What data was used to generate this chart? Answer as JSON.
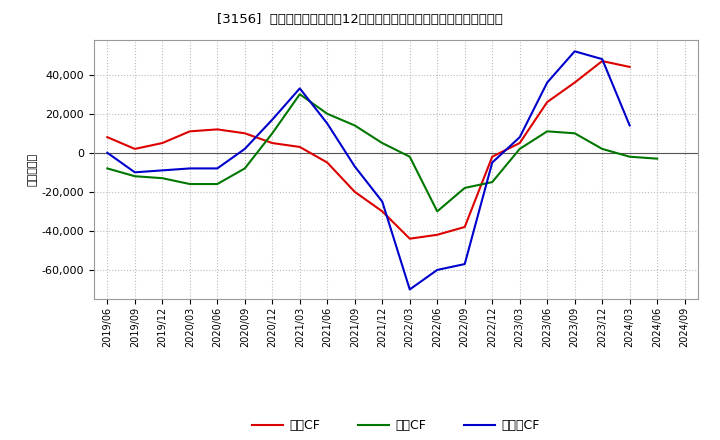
{
  "title": "[3156]  キャッシュフローの12か月移動合計の対前年同期増減額の推移",
  "ylabel": "（百万円）",
  "background_color": "#ffffff",
  "plot_background": "#ffffff",
  "grid_color": "#bbbbbb",
  "dates": [
    "2019/06",
    "2019/09",
    "2019/12",
    "2020/03",
    "2020/06",
    "2020/09",
    "2020/12",
    "2021/03",
    "2021/06",
    "2021/09",
    "2021/12",
    "2022/03",
    "2022/06",
    "2022/09",
    "2022/12",
    "2023/03",
    "2023/06",
    "2023/09",
    "2023/12",
    "2024/03",
    "2024/06",
    "2024/09"
  ],
  "eigyo_cf": [
    8000,
    2000,
    5000,
    11000,
    12000,
    10000,
    5000,
    3000,
    -5000,
    -20000,
    -30000,
    -44000,
    -42000,
    -38000,
    -2000,
    5000,
    26000,
    36000,
    47000,
    44000,
    null,
    null
  ],
  "toshi_cf": [
    -8000,
    -12000,
    -13000,
    -16000,
    -16000,
    -8000,
    10000,
    30000,
    20000,
    14000,
    5000,
    -2000,
    -30000,
    -18000,
    -15000,
    2000,
    11000,
    10000,
    2000,
    -2000,
    -3000,
    null
  ],
  "free_cf": [
    0,
    -10000,
    -9000,
    -8000,
    -8000,
    2000,
    17000,
    33000,
    15000,
    -7000,
    -25000,
    -70000,
    -60000,
    -57000,
    -5000,
    8000,
    36000,
    52000,
    48000,
    14000,
    null,
    null
  ],
  "eigyo_color": "#dd0000",
  "toshi_color": "#007700",
  "free_color": "#0000cc",
  "ylim": [
    -75000,
    58000
  ],
  "yticks": [
    -60000,
    -40000,
    -20000,
    0,
    20000,
    40000
  ],
  "legend_labels": [
    "営業CF",
    "投資CF",
    "フリーCF"
  ]
}
